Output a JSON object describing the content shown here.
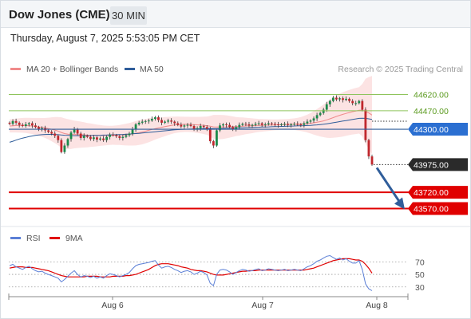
{
  "header": {
    "title": "Dow Jones (CME)",
    "timeframe": "30 MIN"
  },
  "date_line": "Thursday, August 7, 2025 5:53:05 PM CET",
  "colors": {
    "bollinger": "#f4a3a3",
    "ma50": "#2f5d9a",
    "resistance": "#8fc45c",
    "support": "#e00000",
    "arrow": "#2f5d9a",
    "up": "#1a8a4a",
    "down": "#c0272d",
    "rsi": "#5b7fd6",
    "rsi_ma": "#e00000"
  },
  "chart_data": [
    {
      "type": "candlestick",
      "legend": [
        {
          "label": "MA 20 + Bollinger Bands",
          "color": "#f08a8a"
        },
        {
          "label": "MA 50",
          "color": "#2f5d9a"
        }
      ],
      "credit": "Research © 2025 Trading Central",
      "x_ticks": [
        "Aug 6",
        "Aug 7",
        "Aug 8"
      ],
      "ylim": [
        43420,
        44770
      ],
      "levels": [
        {
          "value": 44620,
          "label": "44620.00",
          "kind": "resistance"
        },
        {
          "value": 44470,
          "label": "44470.00",
          "kind": "resistance"
        },
        {
          "value": 44300,
          "label": "44300.00",
          "kind": "pivot"
        },
        {
          "value": 43975,
          "label": "43975.00",
          "kind": "last"
        },
        {
          "value": 43720,
          "label": "43720.00",
          "kind": "support"
        },
        {
          "value": 43570,
          "label": "43570.00",
          "kind": "support"
        }
      ],
      "close": [
        44350,
        44375,
        44360,
        44340,
        44330,
        44345,
        44355,
        44335,
        44320,
        44300,
        44310,
        44290,
        44275,
        44260,
        44240,
        44200,
        44090,
        44150,
        44210,
        44270,
        44300,
        44260,
        44220,
        44240,
        44230,
        44210,
        44225,
        44205,
        44215,
        44200,
        44230,
        44250,
        44245,
        44235,
        44220,
        44230,
        44245,
        44260,
        44300,
        44345,
        44360,
        44370,
        44375,
        44380,
        44395,
        44410,
        44385,
        44360,
        44370,
        44380,
        44370,
        44355,
        44340,
        44325,
        44335,
        44340,
        44330,
        44300,
        44310,
        44330,
        44320,
        44300,
        44190,
        44150,
        44290,
        44335,
        44345,
        44340,
        44320,
        44300,
        44320,
        44340,
        44350,
        44345,
        44335,
        44340,
        44350,
        44355,
        44340,
        44345,
        44355,
        44350,
        44345,
        44340,
        44345,
        44350,
        44340,
        44345,
        44350,
        44345,
        44340,
        44355,
        44370,
        44380,
        44400,
        44430,
        44450,
        44480,
        44530,
        44560,
        44590,
        44575,
        44585,
        44570,
        44580,
        44560,
        44540,
        44540,
        44560,
        44480,
        44200,
        44050,
        43975
      ],
      "ma20": [
        44330,
        44332,
        44334,
        44335,
        44336,
        44335,
        44333,
        44330,
        44326,
        44322,
        44317,
        44312,
        44306,
        44300,
        44292,
        44283,
        44270,
        44260,
        44255,
        44252,
        44252,
        44251,
        44250,
        44248,
        44246,
        44245,
        44244,
        44243,
        44243,
        44242,
        44243,
        44244,
        44245,
        44246,
        44247,
        44249,
        44251,
        44254,
        44258,
        44263,
        44269,
        44275,
        44282,
        44290,
        44298,
        44305,
        44312,
        44318,
        44324,
        44330,
        44336,
        44340,
        44343,
        44344,
        44345,
        44345,
        44344,
        44342,
        44340,
        44338,
        44336,
        44333,
        44328,
        44322,
        44320,
        44320,
        44321,
        44322,
        44323,
        44324,
        44325,
        44326,
        44328,
        44330,
        44331,
        44332,
        44334,
        44335,
        44336,
        44337,
        44338,
        44339,
        44340,
        44341,
        44342,
        44343,
        44344,
        44345,
        44346,
        44347,
        44348,
        44350,
        44352,
        44355,
        44359,
        44364,
        44370,
        44377,
        44386,
        44396,
        44407,
        44418,
        44428,
        44437,
        44446,
        44454,
        44462,
        44468,
        44474,
        44476,
        44465,
        44450,
        44430
      ],
      "bb_width": [
        60,
        62,
        64,
        66,
        68,
        70,
        72,
        74,
        78,
        82,
        86,
        92,
        100,
        110,
        120,
        130,
        140,
        140,
        138,
        134,
        128,
        124,
        120,
        116,
        112,
        108,
        104,
        100,
        96,
        92,
        90,
        88,
        88,
        90,
        92,
        96,
        100,
        104,
        108,
        112,
        114,
        114,
        112,
        110,
        106,
        100,
        96,
        92,
        88,
        84,
        80,
        76,
        74,
        72,
        70,
        70,
        70,
        72,
        74,
        76,
        80,
        84,
        96,
        110,
        112,
        112,
        110,
        106,
        100,
        94,
        88,
        84,
        80,
        76,
        72,
        68,
        64,
        60,
        58,
        56,
        54,
        52,
        50,
        50,
        50,
        50,
        50,
        52,
        54,
        58,
        64,
        72,
        82,
        94,
        108,
        122,
        136,
        150,
        164,
        176,
        186,
        194,
        200,
        204,
        206,
        208,
        210,
        212,
        214,
        240,
        300,
        330,
        360
      ],
      "ma50": [
        44180,
        44190,
        44200,
        44210,
        44218,
        44225,
        44232,
        44238,
        44243,
        44247,
        44250,
        44252,
        44253,
        44253,
        44252,
        44250,
        44247,
        44245,
        44243,
        44242,
        44241,
        44241,
        44241,
        44241,
        44241,
        44242,
        44243,
        44244,
        44245,
        44246,
        44247,
        44248,
        44249,
        44250,
        44251,
        44252,
        44254,
        44256,
        44258,
        44260,
        44262,
        44265,
        44268,
        44271,
        44274,
        44277,
        44280,
        44283,
        44286,
        44289,
        44292,
        44295,
        44297,
        44299,
        44300,
        44301,
        44302,
        44303,
        44304,
        44305,
        44306,
        44307,
        44307,
        44306,
        44306,
        44307,
        44308,
        44309,
        44310,
        44311,
        44312,
        44313,
        44314,
        44315,
        44316,
        44317,
        44318,
        44319,
        44320,
        44321,
        44322,
        44323,
        44324,
        44325,
        44326,
        44327,
        44328,
        44329,
        44330,
        44331,
        44332,
        44333,
        44334,
        44336,
        44338,
        44340,
        44343,
        44346,
        44350,
        44355,
        44360,
        44365,
        44370,
        44375,
        44380,
        44385,
        44390,
        44395,
        44400,
        44402,
        44400,
        44396,
        44390
      ]
    },
    {
      "type": "line",
      "legend": [
        {
          "label": "RSI",
          "color": "#5b7fd6"
        },
        {
          "label": "9MA",
          "color": "#e00000"
        }
      ],
      "y_ticks": [
        "70",
        "50",
        "30"
      ],
      "ylim": [
        17,
        87
      ],
      "rsi": [
        64,
        66,
        62,
        60,
        58,
        61,
        63,
        59,
        56,
        54,
        55,
        52,
        50,
        48,
        46,
        44,
        38,
        42,
        47,
        52,
        56,
        50,
        46,
        48,
        47,
        45,
        47,
        44,
        46,
        44,
        48,
        51,
        50,
        48,
        46,
        48,
        50,
        53,
        59,
        64,
        66,
        67,
        68,
        69,
        71,
        72,
        65,
        60,
        62,
        63,
        61,
        58,
        56,
        53,
        55,
        56,
        54,
        50,
        52,
        55,
        53,
        49,
        36,
        32,
        50,
        57,
        58,
        57,
        54,
        50,
        53,
        56,
        58,
        57,
        55,
        56,
        58,
        59,
        56,
        57,
        59,
        58,
        57,
        56,
        57,
        58,
        56,
        57,
        58,
        57,
        56,
        59,
        62,
        64,
        67,
        71,
        73,
        76,
        79,
        80,
        77,
        74,
        76,
        73,
        75,
        71,
        68,
        68,
        72,
        58,
        35,
        27,
        24
      ],
      "ma9": [
        60,
        61,
        62,
        62,
        62,
        61,
        61,
        61,
        60,
        59,
        58,
        57,
        56,
        54,
        52,
        50,
        48,
        47,
        46,
        46,
        46,
        46,
        46,
        46,
        47,
        47,
        47,
        47,
        46,
        46,
        46,
        46,
        47,
        47,
        47,
        47,
        48,
        48,
        49,
        50,
        52,
        54,
        56,
        58,
        61,
        64,
        66,
        67,
        67,
        67,
        66,
        65,
        64,
        62,
        61,
        60,
        58,
        57,
        56,
        56,
        55,
        54,
        52,
        50,
        49,
        49,
        49,
        50,
        51,
        52,
        53,
        54,
        55,
        55,
        56,
        56,
        56,
        57,
        57,
        57,
        57,
        57,
        57,
        57,
        57,
        57,
        57,
        57,
        57,
        57,
        57,
        57,
        58,
        59,
        60,
        62,
        64,
        66,
        68,
        70,
        72,
        73,
        74,
        75,
        75,
        75,
        74,
        73,
        73,
        71,
        66,
        60,
        52
      ]
    }
  ]
}
